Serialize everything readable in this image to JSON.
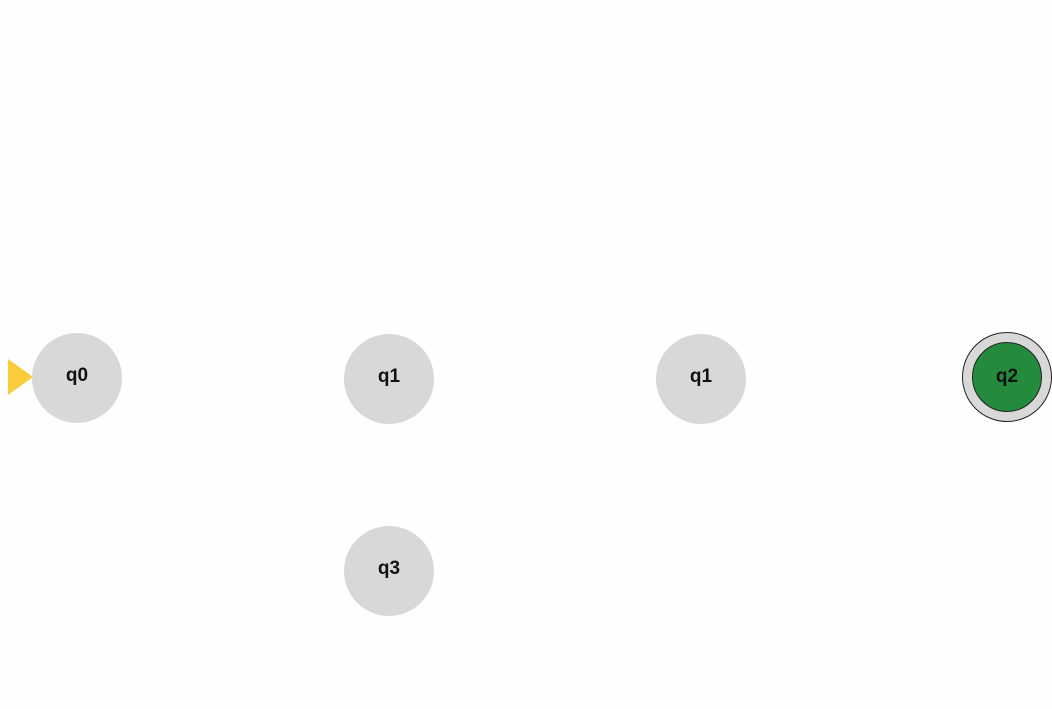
{
  "diagram": {
    "states": [
      {
        "id": "q0",
        "label": "q0",
        "initial": true,
        "accepting": false,
        "active": false
      },
      {
        "id": "q1a",
        "label": "q1",
        "initial": false,
        "accepting": false,
        "active": false
      },
      {
        "id": "q1b",
        "label": "q1",
        "initial": false,
        "accepting": false,
        "active": false
      },
      {
        "id": "q2",
        "label": "q2",
        "initial": false,
        "accepting": true,
        "active": true
      },
      {
        "id": "q3",
        "label": "q3",
        "initial": false,
        "accepting": false,
        "active": false
      }
    ],
    "colors": {
      "state_fill": "#d8d8d8",
      "active_fill": "#248a3c",
      "start_arrow": "#f9cc3c",
      "label": "#111111"
    },
    "icons": {
      "start_marker": "start-arrow-icon"
    }
  }
}
